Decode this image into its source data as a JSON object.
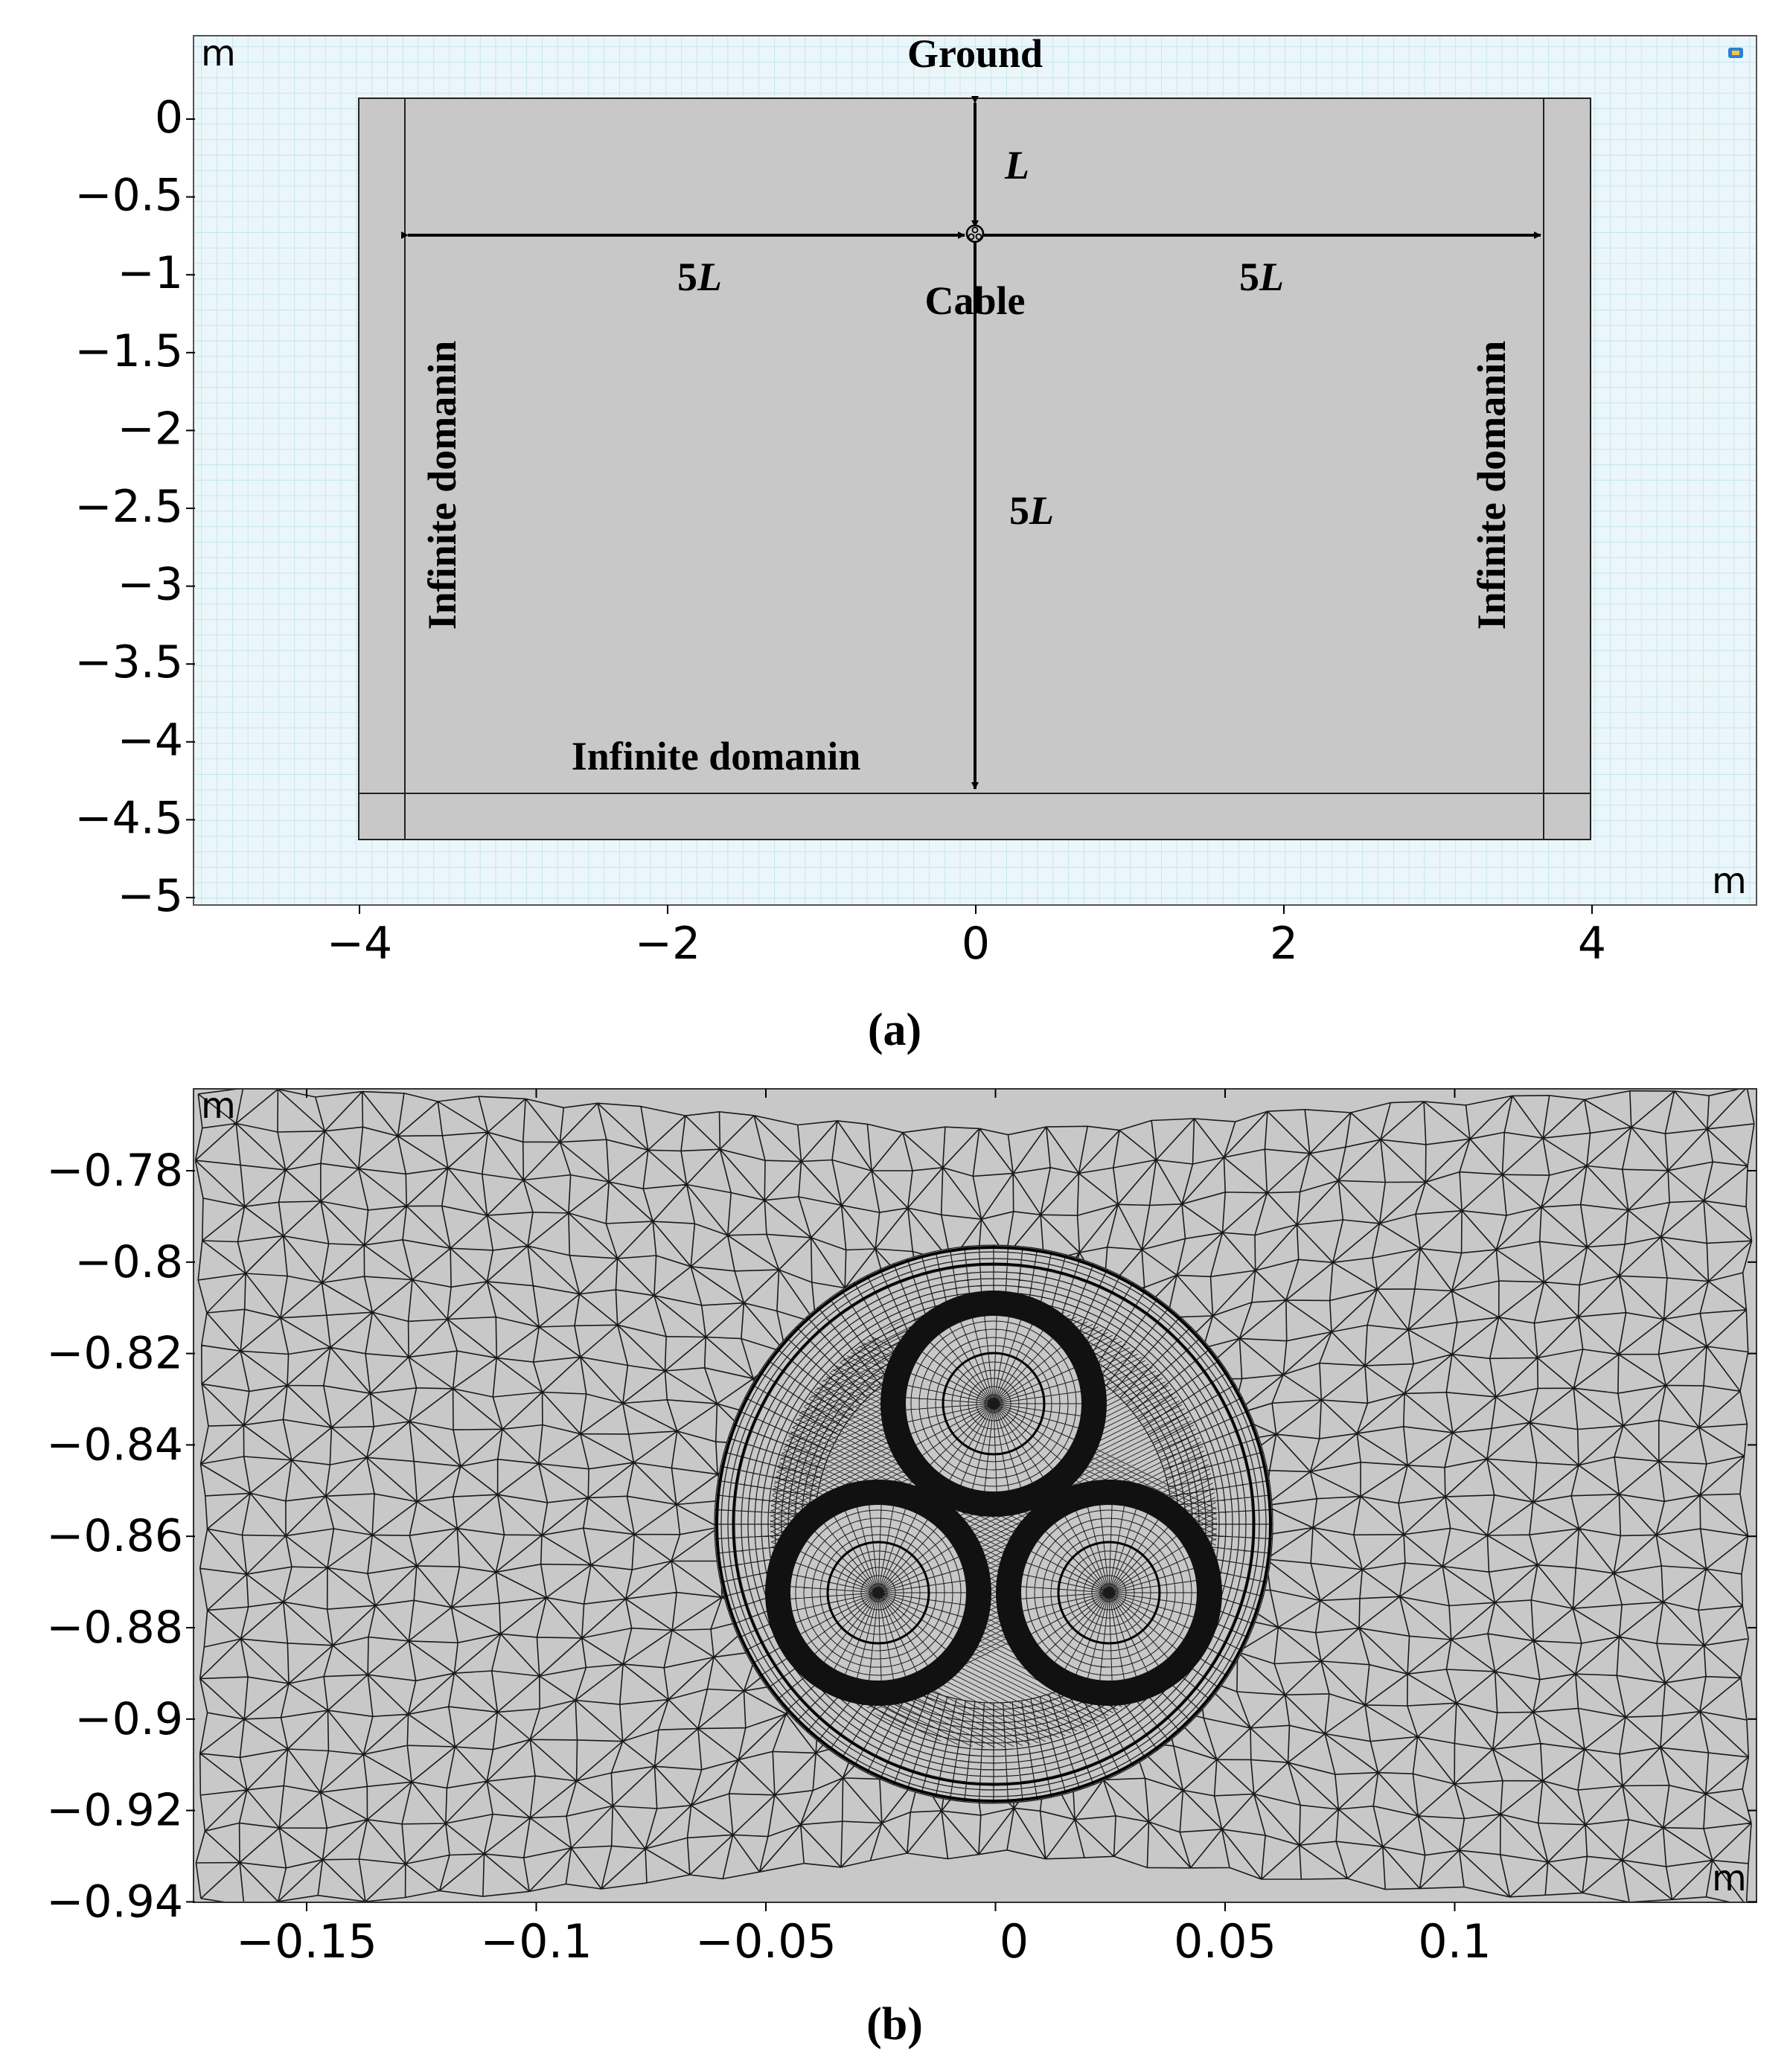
{
  "panel_a": {
    "unit_top_left": "m",
    "unit_bottom_right": "m",
    "y_ticks": [
      "0",
      "−0.5",
      "−1",
      "−1.5",
      "−2",
      "−2.5",
      "−3",
      "−3.5",
      "−4",
      "−4.5",
      "−5"
    ],
    "x_ticks": [
      "−4",
      "−2",
      "0",
      "2",
      "4"
    ],
    "labels": {
      "ground": "Ground",
      "cable": "Cable",
      "infinite_left": "Infinite domanin",
      "infinite_right": "Infinite domanin",
      "infinite_bottom": "Infinite domanin",
      "dim_L_num": "",
      "dim_L_var": "L",
      "dim_5L_num": "5",
      "dim_5L_var": "L"
    },
    "caption": "(a)"
  },
  "panel_b": {
    "unit_top_left": "m",
    "unit_bottom_right": "m",
    "y_ticks": [
      "−0.78",
      "−0.8",
      "−0.82",
      "−0.84",
      "−0.86",
      "−0.88",
      "−0.9",
      "−0.92",
      "−0.94"
    ],
    "x_ticks": [
      "−0.15",
      "−0.1",
      "−0.05",
      "0",
      "0.05",
      "0.1"
    ],
    "caption": "(b)"
  },
  "colors": {
    "domain_fill": "#c8c8c8",
    "grid_bg": "#e6f4f8",
    "grid_line": "#a8d8e6",
    "mesh_line": "#1a1a1a"
  }
}
